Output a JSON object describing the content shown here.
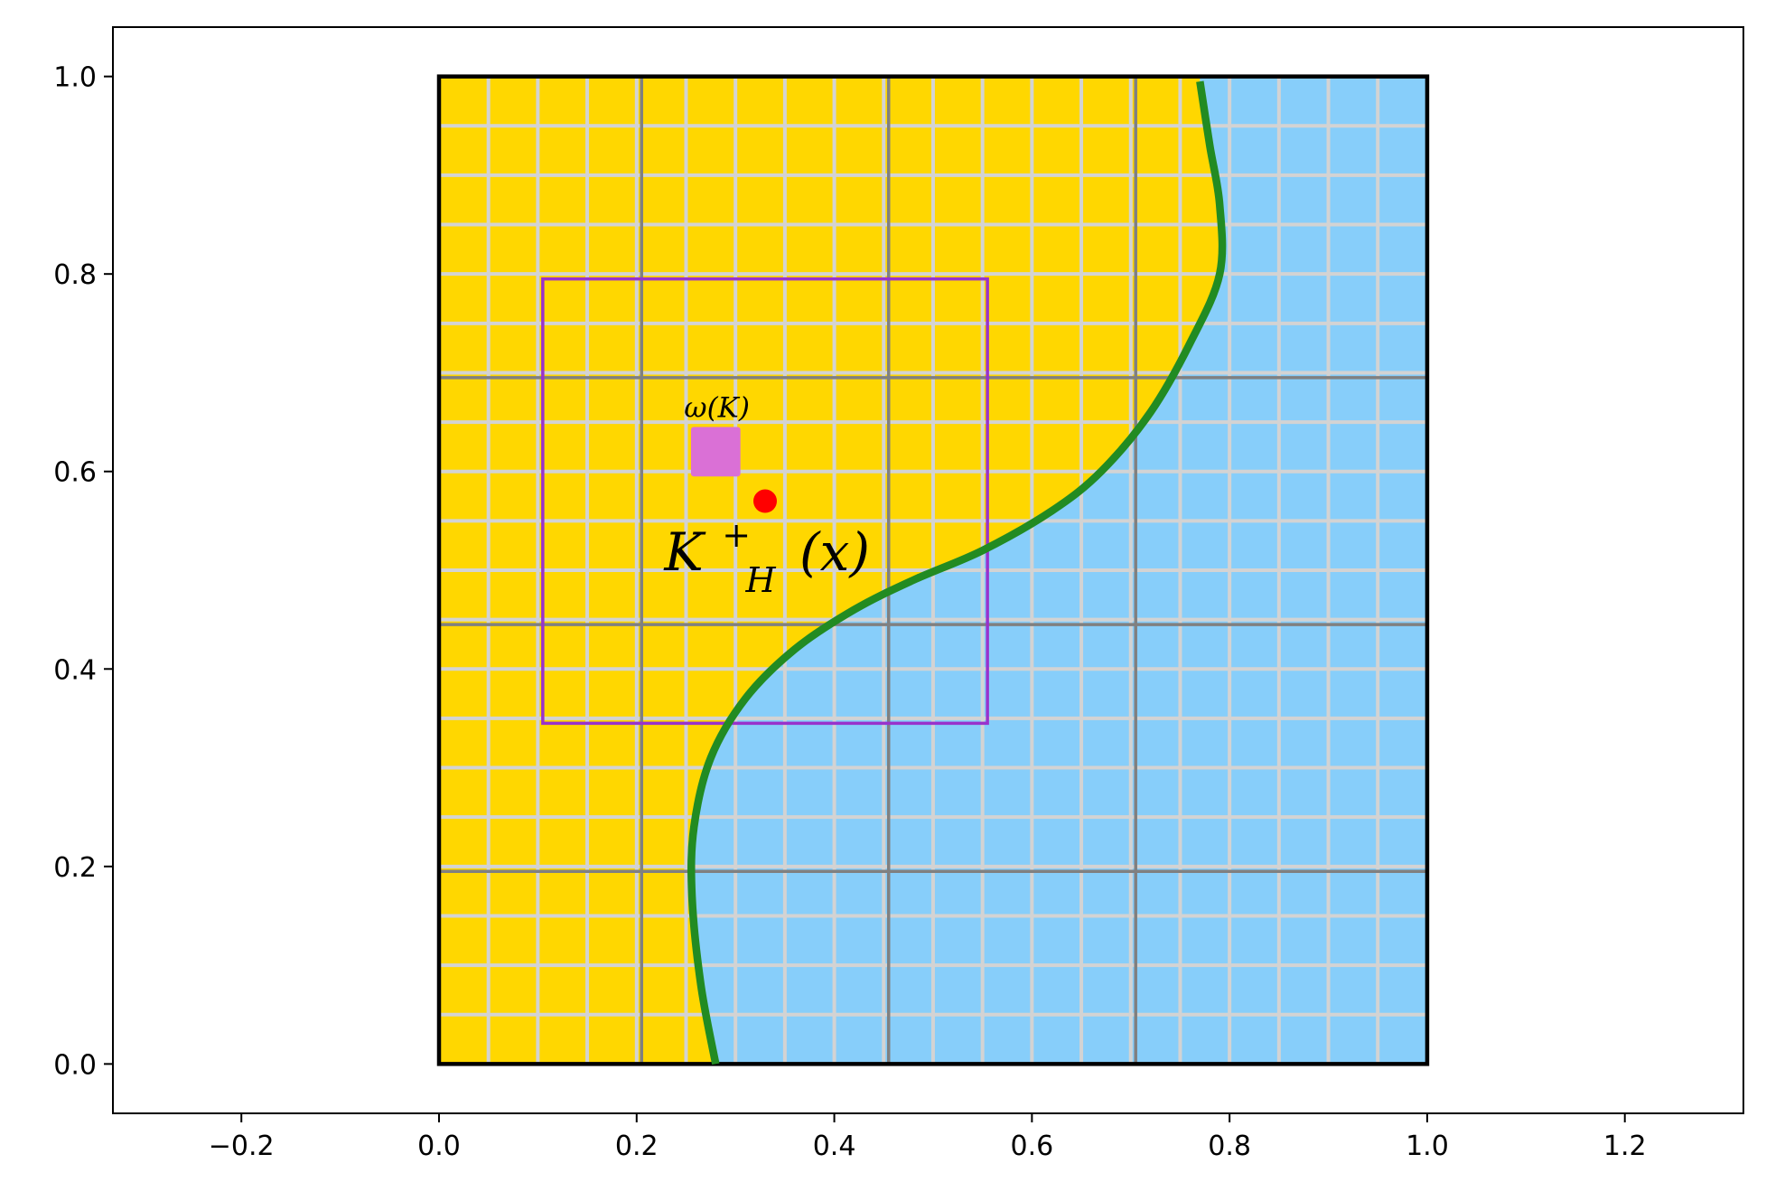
{
  "chart_data": {
    "type": "diagram",
    "xlim": [
      -0.33,
      1.32
    ],
    "ylim": [
      -0.05,
      1.05
    ],
    "xticks": [
      "−0.2",
      "0.0",
      "0.2",
      "0.4",
      "0.6",
      "0.8",
      "1.0",
      "1.2"
    ],
    "xtick_values": [
      -0.2,
      0.0,
      0.2,
      0.4,
      0.6,
      0.8,
      1.0,
      1.2
    ],
    "yticks": [
      "0.0",
      "0.2",
      "0.4",
      "0.6",
      "0.8",
      "1.0"
    ],
    "ytick_values": [
      0.0,
      0.2,
      0.4,
      0.6,
      0.8,
      1.0
    ],
    "domain_square": [
      0,
      1,
      0,
      1
    ],
    "fine_grid_step": 0.05,
    "coarse_grid_lines_x": [
      0.205,
      0.455,
      0.705
    ],
    "coarse_grid_lines_y": [
      0.195,
      0.445,
      0.695
    ],
    "interface_curve": [
      [
        0.28,
        0.0
      ],
      [
        0.265,
        0.08
      ],
      [
        0.256,
        0.17
      ],
      [
        0.258,
        0.24
      ],
      [
        0.275,
        0.31
      ],
      [
        0.31,
        0.37
      ],
      [
        0.36,
        0.42
      ],
      [
        0.42,
        0.46
      ],
      [
        0.48,
        0.49
      ],
      [
        0.55,
        0.52
      ],
      [
        0.62,
        0.56
      ],
      [
        0.67,
        0.6
      ],
      [
        0.72,
        0.66
      ],
      [
        0.76,
        0.73
      ],
      [
        0.79,
        0.8
      ],
      [
        0.79,
        0.87
      ],
      [
        0.78,
        0.93
      ],
      [
        0.77,
        0.995
      ]
    ],
    "patch_box": {
      "x0": 0.105,
      "x1": 0.555,
      "y0": 0.345,
      "y1": 0.795
    },
    "omega_square": {
      "x0": 0.255,
      "x1": 0.305,
      "y0": 0.595,
      "y1": 0.645
    },
    "point": {
      "x": 0.33,
      "y": 0.57
    },
    "colors": {
      "inside": "#FFD700",
      "outside": "#87CEFA",
      "fine_grid": "#D3D3D3",
      "coarse_grid": "#808080",
      "interface": "#228B22",
      "patch": "#9932CC",
      "omega": "#DA70D6",
      "point": "#FF0000"
    },
    "annotations": {
      "omega_label": "ω(K)",
      "k_base": "K",
      "k_sub": "H",
      "k_sup": "+",
      "k_arg": "(x)"
    }
  }
}
